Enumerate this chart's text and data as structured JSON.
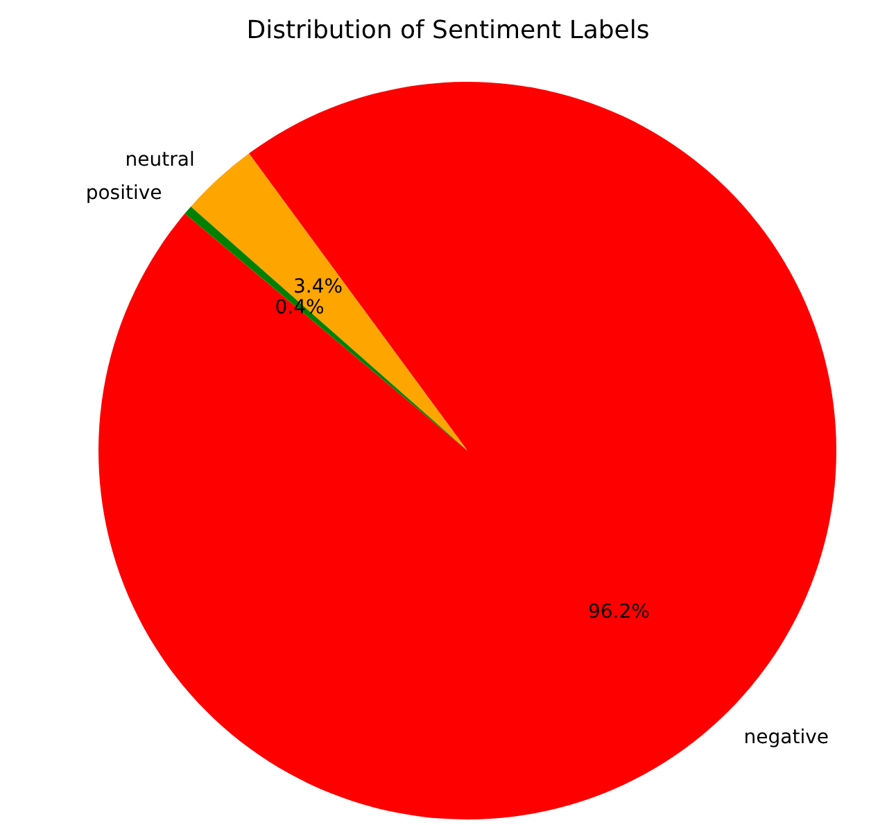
{
  "chart_data": {
    "type": "pie",
    "title": "Distribution of Sentiment Labels",
    "categories": [
      "negative",
      "neutral",
      "positive"
    ],
    "values": [
      96.2,
      3.4,
      0.4
    ],
    "value_labels": [
      "96.2%",
      "3.4%",
      "0.4%"
    ],
    "colors": [
      "#ff0000",
      "#ffa500",
      "#008000"
    ]
  }
}
